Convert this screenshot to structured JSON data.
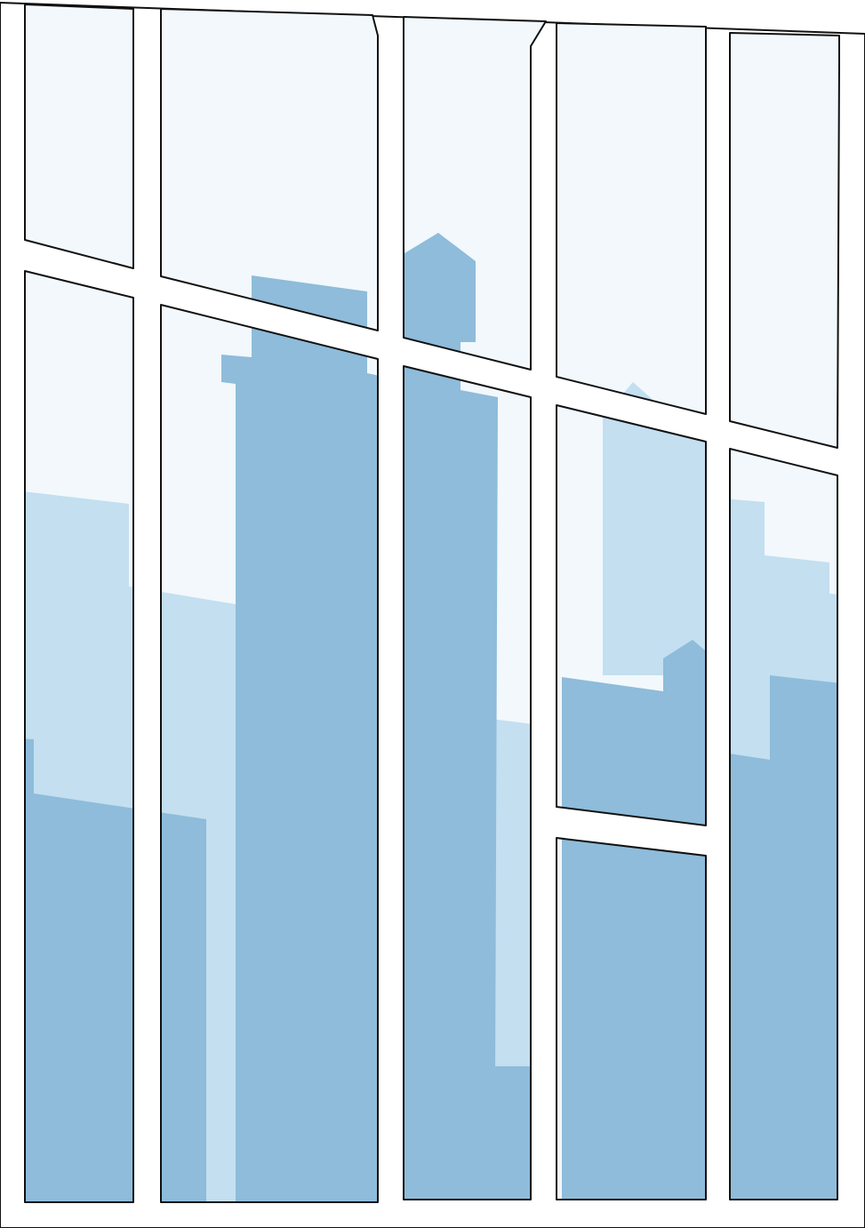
{
  "scene": {
    "subject": "window-view-of-city-skyline",
    "colors": {
      "frame": "#ffffff",
      "outline": "#111111",
      "sky": "#f2f8fc",
      "far_buildings": "#c3dff0",
      "near_buildings": "#8ebcda"
    },
    "window": {
      "columns": 5,
      "rows": 3
    }
  }
}
